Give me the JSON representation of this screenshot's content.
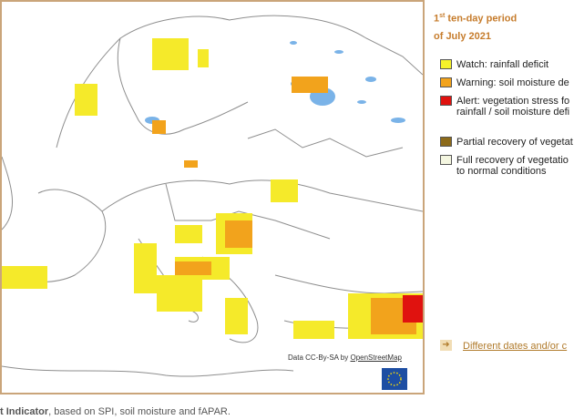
{
  "period": {
    "number": "1",
    "suffix": "st",
    "rest": "ten-day period",
    "month": "of July 2021"
  },
  "legend": [
    {
      "lines": [
        "Watch: rainfall deficit"
      ],
      "color": "#f5f22a"
    },
    {
      "lines": [
        "Warning: soil moisture de"
      ],
      "color": "#f2a31c"
    },
    {
      "lines": [
        "Alert: vegetation stress fo",
        "rainfall / soil moisture defi"
      ],
      "color": "#e0120f"
    },
    {
      "lines": [
        "Partial recovery of vegetat"
      ],
      "color": "#8c6a1a"
    },
    {
      "lines": [
        "Full recovery of vegetatio",
        "to normal conditions"
      ],
      "color": "#f4f6e0"
    }
  ],
  "link": "Different dates and/or c",
  "attribution": {
    "prefix": "Data CC-By-SA by",
    "link": "OpenStreetMap"
  },
  "footer": {
    "bold": "t Indicator",
    "rest": ", based on SPI, soil moisture and fAPAR."
  }
}
